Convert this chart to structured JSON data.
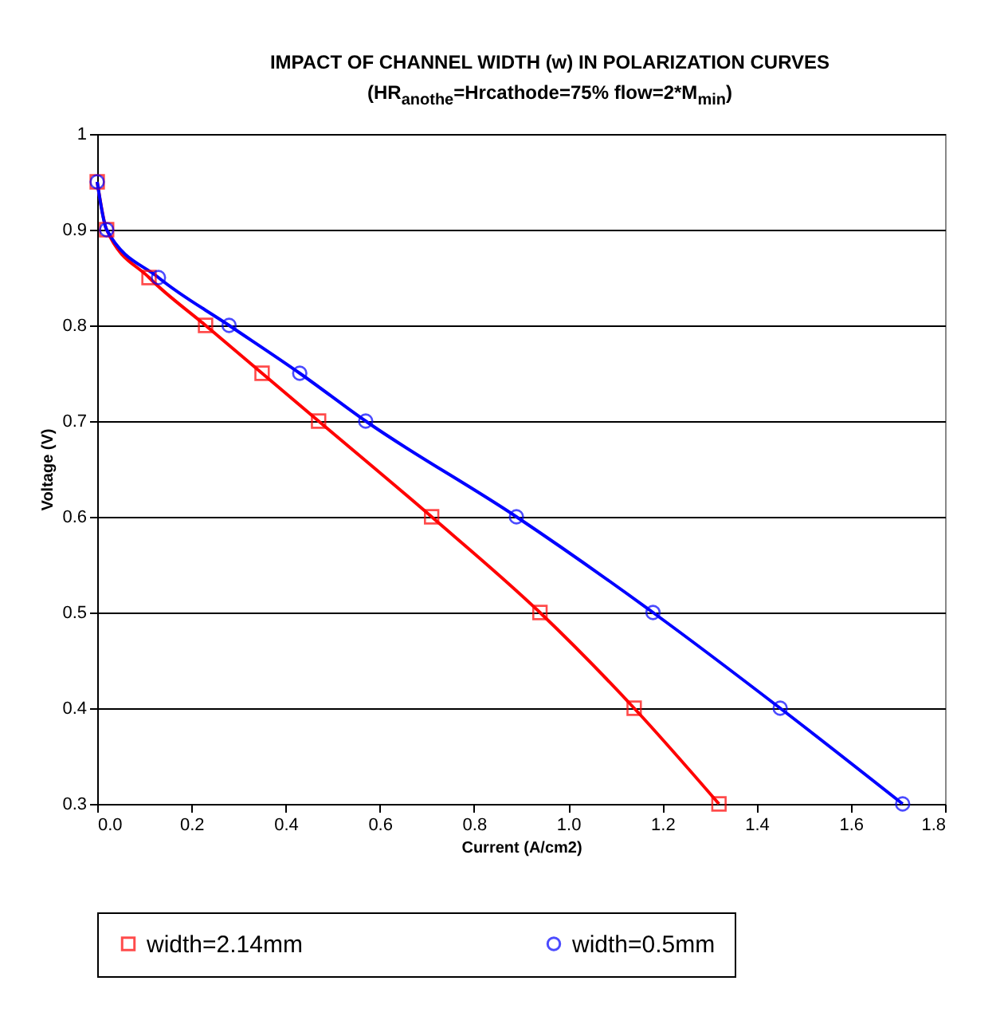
{
  "chart_data": {
    "type": "line",
    "title": "IMPACT OF CHANNEL WIDTH (w) IN POLARIZATION CURVES",
    "subtitle": "(HR$_{anothe}$=Hrcathode=75%   flow=2*M$_{min}$)",
    "xlabel": "Current (A/cm2)",
    "ylabel": "Voltage (V)",
    "xlim": [
      0,
      1.8
    ],
    "xticks": [
      {
        "value": 0,
        "label": "0.0"
      },
      0.2,
      0.4,
      0.6,
      0.8,
      {
        "value": 1,
        "label": "1.0"
      },
      1.2,
      1.4,
      1.6,
      1.8
    ],
    "ylim": [
      0.3,
      1
    ],
    "yticks": [
      0.3,
      0.4,
      0.5,
      0.6,
      0.7,
      0.8,
      0.9,
      1
    ],
    "grid": "y",
    "legend": "bottom",
    "series": [
      {
        "name": "width=2.14mm",
        "color": "#ff0000",
        "marker": "square",
        "x": [
          0,
          0.02,
          0.11,
          0.23,
          0.35,
          0.47,
          0.71,
          0.94,
          1.14,
          1.32
        ],
        "values": [
          0.95,
          0.9,
          0.85,
          0.8,
          0.75,
          0.7,
          0.6,
          0.5,
          0.4,
          0.3
        ]
      },
      {
        "name": "width=0.5mm",
        "color": "#0000ff",
        "marker": "circle",
        "x": [
          0,
          0.02,
          0.13,
          0.28,
          0.43,
          0.57,
          0.89,
          1.18,
          1.45,
          1.71
        ],
        "values": [
          0.95,
          0.9,
          0.85,
          0.8,
          0.75,
          0.7,
          0.6,
          0.5,
          0.4,
          0.3
        ]
      }
    ]
  }
}
